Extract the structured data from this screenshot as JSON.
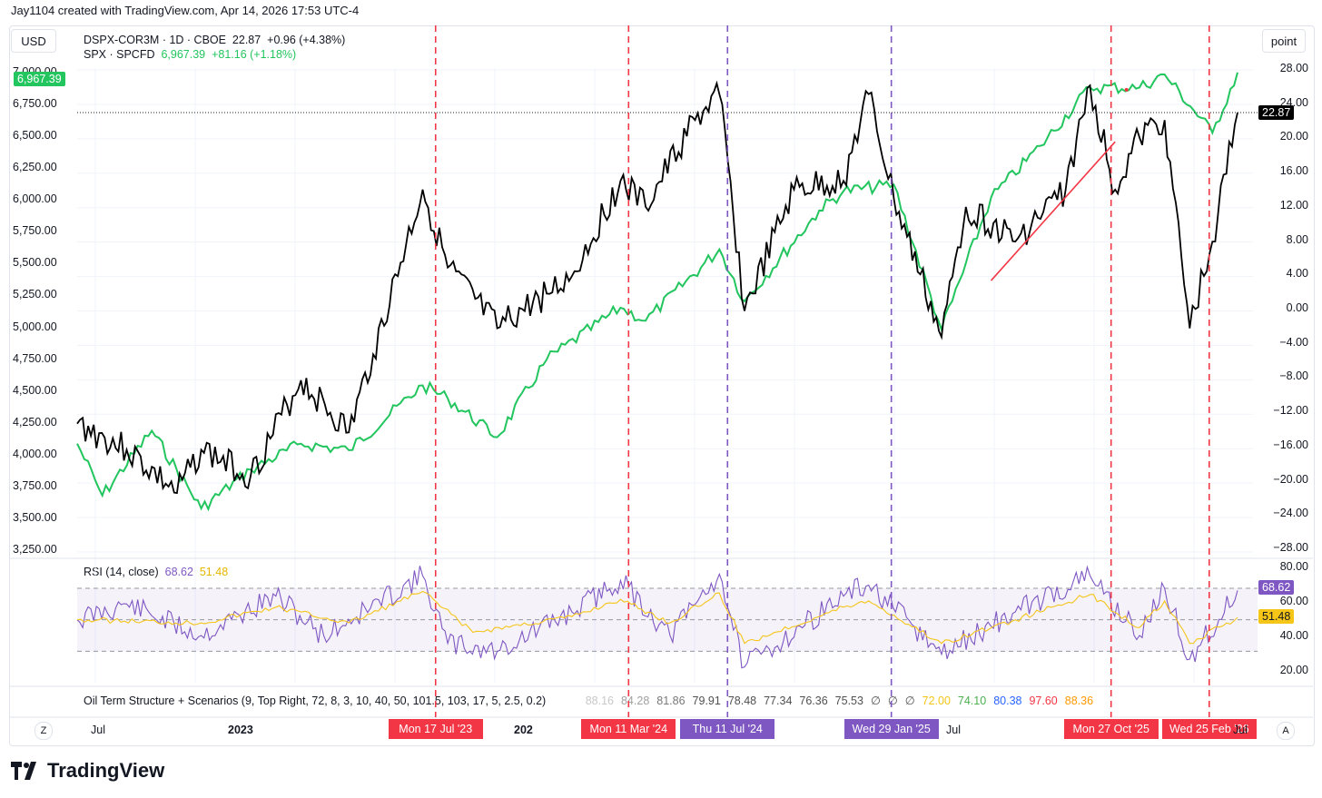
{
  "header": {
    "credit": "Jay1104 created with TradingView.com, Apr 14, 2026 17:53 UTC-4"
  },
  "controls": {
    "currency": "USD",
    "unit": "point",
    "zoom_z": "Z",
    "auto_a": "A"
  },
  "legend": {
    "main_symbol": "DSPX-COR3M · 1D · CBOE",
    "main_value": "22.87",
    "main_change": "+0.96 (+4.38%)",
    "second_symbol": "SPX · SPCFD",
    "second_value": "6,967.39",
    "second_change": "+81.16 (+1.18%)",
    "rsi_label": "RSI (14, close)",
    "rsi_value": "68.62",
    "rsi_ma": "51.48",
    "oil_label": "Oil Term Structure + Scenarios (9, Top Right, 72, 8, 3, 10, 40, 50, 101.5, 103, 17, 5, 2.5, 0.2)",
    "oil_values": [
      {
        "v": "88.16",
        "c": "#c8c8c8"
      },
      {
        "v": "84.28",
        "c": "#a0a0a0"
      },
      {
        "v": "81.86",
        "c": "#787878"
      },
      {
        "v": "79.91",
        "c": "#505050"
      },
      {
        "v": "78.48",
        "c": "#505050"
      },
      {
        "v": "77.34",
        "c": "#505050"
      },
      {
        "v": "76.36",
        "c": "#505050"
      },
      {
        "v": "75.53",
        "c": "#505050"
      },
      {
        "v": "∅",
        "c": "#505050"
      },
      {
        "v": "∅",
        "c": "#505050"
      },
      {
        "v": "∅",
        "c": "#505050"
      },
      {
        "v": "72.00",
        "c": "#f5c518"
      },
      {
        "v": "74.10",
        "c": "#4caf50"
      },
      {
        "v": "80.38",
        "c": "#2962ff"
      },
      {
        "v": "97.60",
        "c": "#f23645"
      },
      {
        "v": "88.36",
        "c": "#ff9800"
      }
    ]
  },
  "colors": {
    "dspx": "#000000",
    "spx": "#22c55e",
    "rsi": "#7e57c2",
    "rsi_ma": "#f5c518",
    "red": "#f23645",
    "purple": "#7e57c2",
    "trend": "#f23645"
  },
  "axes": {
    "left_ticks": [
      "7,000.00",
      "6,750.00",
      "6,500.00",
      "6,250.00",
      "6,000.00",
      "5,750.00",
      "5,500.00",
      "5,250.00",
      "5,000.00",
      "4,750.00",
      "4,500.00",
      "4,250.00",
      "4,000.00",
      "3,750.00",
      "3,500.00",
      "3,250.00"
    ],
    "right_ticks": [
      "28.00",
      "24.00",
      "20.00",
      "16.00",
      "12.00",
      "8.00",
      "4.00",
      "0.00",
      "−4.00",
      "−8.00",
      "−12.00",
      "−16.00",
      "−20.00",
      "−24.00",
      "−28.00"
    ],
    "rsi_ticks": [
      "80.00",
      "60.00",
      "40.00",
      "20.00"
    ],
    "x_labels": [
      "Jul",
      "2023",
      "202",
      "Jul",
      "Jul"
    ],
    "spx_last_tag": "6,967.39",
    "dspx_last_tag": "22.87",
    "rsi_last_tag": "68.62",
    "rsi_ma_tag": "51.48"
  },
  "events": [
    {
      "label": "Mon 17 Jul '23",
      "color": "red"
    },
    {
      "label": "Mon 11 Mar '24",
      "color": "red"
    },
    {
      "label": "Thu 11 Jul '24",
      "color": "purple"
    },
    {
      "label": "Wed 29 Jan '25",
      "color": "purple"
    },
    {
      "label": "Mon 27 Oct '25",
      "color": "red"
    },
    {
      "label": "Wed 25 Feb '26",
      "color": "red"
    }
  ],
  "chart_data": {
    "type": "line",
    "x_range": [
      "2022-05",
      "2026-04"
    ],
    "series": [
      {
        "name": "DSPX-COR3M",
        "axis": "right",
        "ylim": [
          -28,
          28
        ],
        "points": [
          [
            "2022-05",
            -13
          ],
          [
            "2022-07",
            -16
          ],
          [
            "2022-09",
            -21
          ],
          [
            "2022-10",
            -16
          ],
          [
            "2022-12",
            -19
          ],
          [
            "2023-02",
            -8
          ],
          [
            "2023-04",
            -14
          ],
          [
            "2023-05",
            -5
          ],
          [
            "2023-07",
            14
          ],
          [
            "2023-08",
            5
          ],
          [
            "2023-10",
            -2
          ],
          [
            "2023-12",
            2
          ],
          [
            "2024-01",
            4
          ],
          [
            "2024-03",
            15
          ],
          [
            "2024-04",
            12
          ],
          [
            "2024-06",
            22
          ],
          [
            "2024-07",
            25
          ],
          [
            "2024-08",
            0
          ],
          [
            "2024-10",
            14
          ],
          [
            "2024-12",
            15
          ],
          [
            "2025-01",
            25
          ],
          [
            "2025-02",
            13
          ],
          [
            "2025-04",
            -3
          ],
          [
            "2025-05",
            12
          ],
          [
            "2025-07",
            8
          ],
          [
            "2025-09",
            14
          ],
          [
            "2025-10",
            26
          ],
          [
            "2025-11",
            14
          ],
          [
            "2025-12",
            20
          ],
          [
            "2026-01",
            22
          ],
          [
            "2026-02",
            -2
          ],
          [
            "2026-03",
            8
          ],
          [
            "2026-04",
            22.87
          ]
        ]
      },
      {
        "name": "SPX",
        "axis": "left",
        "ylim": [
          3250,
          7000
        ],
        "points": [
          [
            "2022-05",
            4100
          ],
          [
            "2022-06",
            3700
          ],
          [
            "2022-08",
            4200
          ],
          [
            "2022-10",
            3600
          ],
          [
            "2022-12",
            3900
          ],
          [
            "2023-02",
            4100
          ],
          [
            "2023-04",
            4050
          ],
          [
            "2023-07",
            4550
          ],
          [
            "2023-08",
            4450
          ],
          [
            "2023-10",
            4150
          ],
          [
            "2023-12",
            4750
          ],
          [
            "2024-03",
            5150
          ],
          [
            "2024-04",
            5050
          ],
          [
            "2024-07",
            5600
          ],
          [
            "2024-08",
            5200
          ],
          [
            "2024-11",
            5900
          ],
          [
            "2024-12",
            6050
          ],
          [
            "2025-02",
            6100
          ],
          [
            "2025-04",
            4980
          ],
          [
            "2025-06",
            6000
          ],
          [
            "2025-08",
            6400
          ],
          [
            "2025-10",
            6850
          ],
          [
            "2025-12",
            6850
          ],
          [
            "2026-01",
            6950
          ],
          [
            "2026-03",
            6500
          ],
          [
            "2026-04",
            6967.39
          ]
        ]
      },
      {
        "name": "RSI",
        "axis": "rsi",
        "ylim": [
          10,
          85
        ],
        "points": [
          [
            "2022-05",
            50
          ],
          [
            "2022-07",
            60
          ],
          [
            "2022-10",
            40
          ],
          [
            "2023-01",
            65
          ],
          [
            "2023-03",
            40
          ],
          [
            "2023-07",
            78
          ],
          [
            "2023-08",
            35
          ],
          [
            "2023-10",
            30
          ],
          [
            "2024-01",
            55
          ],
          [
            "2024-03",
            75
          ],
          [
            "2024-05",
            40
          ],
          [
            "2024-07",
            79
          ],
          [
            "2024-08",
            20
          ],
          [
            "2024-12",
            65
          ],
          [
            "2025-01",
            72
          ],
          [
            "2025-04",
            28
          ],
          [
            "2025-07",
            55
          ],
          [
            "2025-10",
            78
          ],
          [
            "2025-12",
            40
          ],
          [
            "2026-01",
            70
          ],
          [
            "2026-02",
            25
          ],
          [
            "2026-04",
            68.62
          ]
        ]
      },
      {
        "name": "RSI MA",
        "axis": "rsi",
        "ylim": [
          10,
          85
        ],
        "points": [
          [
            "2022-05",
            50
          ],
          [
            "2022-10",
            48
          ],
          [
            "2023-01",
            58
          ],
          [
            "2023-04",
            48
          ],
          [
            "2023-07",
            68
          ],
          [
            "2023-09",
            42
          ],
          [
            "2024-01",
            52
          ],
          [
            "2024-03",
            63
          ],
          [
            "2024-05",
            48
          ],
          [
            "2024-07",
            67
          ],
          [
            "2024-08",
            35
          ],
          [
            "2024-12",
            58
          ],
          [
            "2025-01",
            62
          ],
          [
            "2025-04",
            35
          ],
          [
            "2025-07",
            50
          ],
          [
            "2025-10",
            66
          ],
          [
            "2025-12",
            45
          ],
          [
            "2026-01",
            62
          ],
          [
            "2026-02",
            35
          ],
          [
            "2026-04",
            51.48
          ]
        ]
      }
    ],
    "events_x": [
      "2023-07-17",
      "2024-03-11",
      "2024-07-11",
      "2025-01-29",
      "2025-10-27",
      "2026-02-25"
    ],
    "trendline": [
      [
        "2025-06",
        3.5
      ],
      [
        "2025-11",
        19.5
      ]
    ]
  }
}
